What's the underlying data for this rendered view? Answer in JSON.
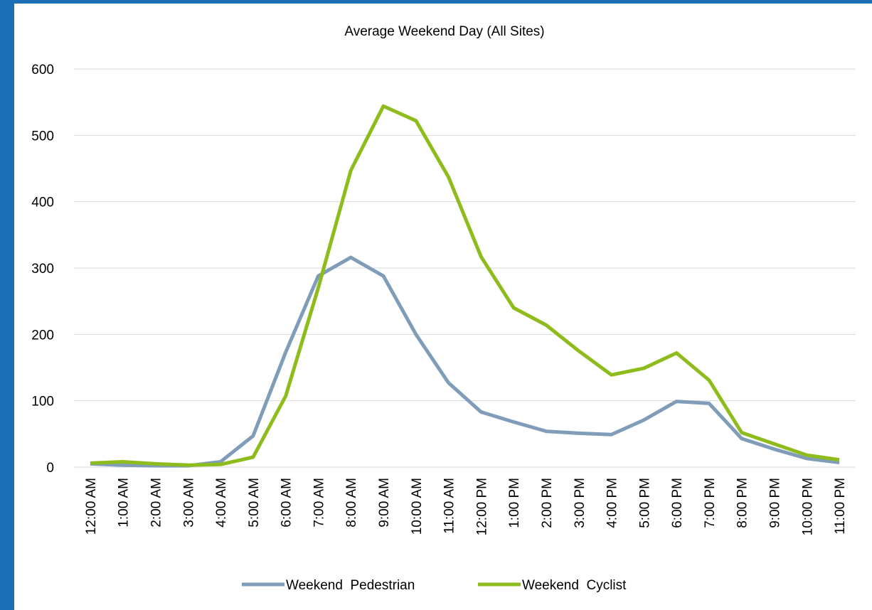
{
  "chart_data": {
    "type": "line",
    "title": "Average Weekend Day (All Sites)",
    "categories": [
      "12:00 AM",
      "1:00 AM",
      "2:00 AM",
      "3:00 AM",
      "4:00 AM",
      "5:00 AM",
      "6:00 AM",
      "7:00 AM",
      "8:00 AM",
      "9:00 AM",
      "10:00 AM",
      "11:00 AM",
      "12:00 PM",
      "1:00 PM",
      "2:00 PM",
      "3:00 PM",
      "4:00 PM",
      "5:00 PM",
      "6:00 PM",
      "7:00 PM",
      "8:00 PM",
      "9:00 PM",
      "10:00 PM",
      "11:00 PM"
    ],
    "series": [
      {
        "name": "Weekend  Pedestrian",
        "color": "#7f9db9",
        "values": [
          5,
          3,
          2,
          2,
          8,
          47,
          173,
          288,
          316,
          288,
          200,
          127,
          83,
          68,
          54,
          51,
          49,
          71,
          99,
          96,
          43,
          27,
          13,
          7
        ]
      },
      {
        "name": "Weekend  Cyclist",
        "color": "#8fbc1d",
        "values": [
          6,
          8,
          5,
          3,
          4,
          15,
          107,
          270,
          447,
          544,
          522,
          437,
          317,
          240,
          214,
          175,
          139,
          149,
          172,
          131,
          52,
          35,
          18,
          11
        ]
      }
    ],
    "ylim": [
      0,
      600
    ],
    "yticks": [
      0,
      100,
      200,
      300,
      400,
      500,
      600
    ],
    "grid": true,
    "legend": "bottom"
  }
}
